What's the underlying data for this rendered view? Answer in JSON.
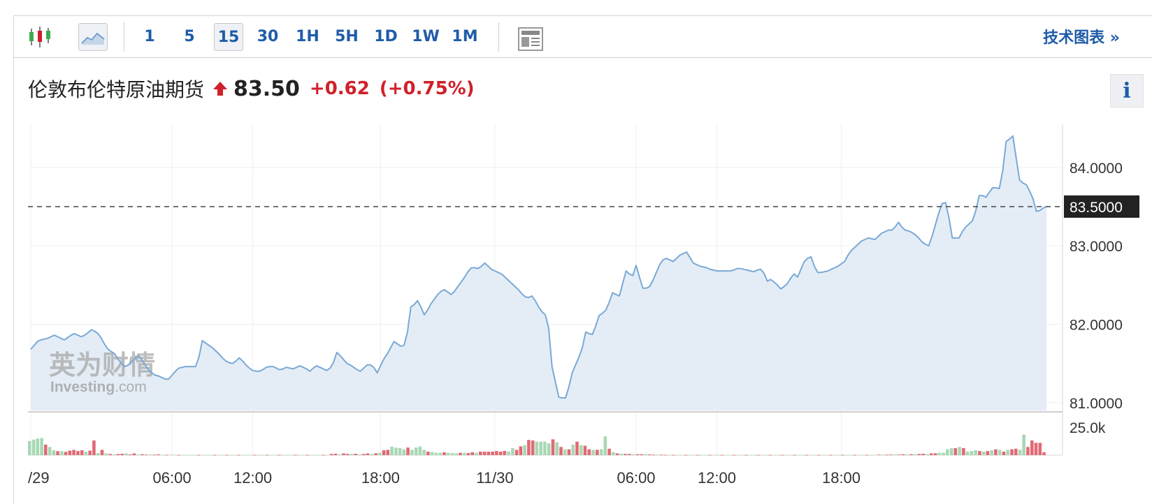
{
  "toolbar": {
    "timeframes": [
      "1",
      "5",
      "15",
      "30",
      "1H",
      "5H",
      "1D",
      "1W",
      "1M"
    ],
    "active_timeframe": "15",
    "technical_chart_label": "技术图表 »"
  },
  "header": {
    "instrument": "伦敦布伦特原油期货",
    "price": "83.50",
    "change": "+0.62",
    "change_pct": "(+0.75%)"
  },
  "info_label": "i",
  "watermark": {
    "line1": "英为财情",
    "line2": "Investing",
    "line2_suffix": ".com"
  },
  "colors": {
    "line": "#7aa9d6",
    "area": "#e4edf6",
    "up_volume": "#a8d8b4",
    "down_volume": "#e06a74",
    "change": "#d0202a",
    "link": "#1f5ca8"
  },
  "chart_data": {
    "type": "area",
    "title": "伦敦布伦特原油期货",
    "x_tick_labels": [
      "/29",
      "06:00",
      "12:00",
      "18:00",
      "11/30",
      "06:00",
      "12:00",
      "18:00"
    ],
    "x_tick_index": [
      0,
      42,
      66,
      104,
      138,
      180,
      204,
      241
    ],
    "y_tick_labels": [
      "84.0000",
      "83.0000",
      "82.0000",
      "81.0000"
    ],
    "y_ticks": [
      84,
      83,
      82,
      81
    ],
    "ylim": [
      80.9,
      84.55
    ],
    "current_price_label": "83.5000",
    "current_price": 83.5,
    "values": [
      81.68,
      81.73,
      81.78,
      81.8,
      81.81,
      81.82,
      81.84,
      81.86,
      81.84,
      81.82,
      81.8,
      81.83,
      81.86,
      81.88,
      81.86,
      81.84,
      81.86,
      81.89,
      81.93,
      81.91,
      81.88,
      81.82,
      81.74,
      81.68,
      81.65,
      81.62,
      81.55,
      81.5,
      81.46,
      81.48,
      81.52,
      81.56,
      81.6,
      81.55,
      81.48,
      81.42,
      81.38,
      81.35,
      81.34,
      81.32,
      81.3,
      81.3,
      81.35,
      81.4,
      81.44,
      81.45,
      81.46,
      81.46,
      81.46,
      81.46,
      81.58,
      81.79,
      81.76,
      81.73,
      81.7,
      81.66,
      81.62,
      81.57,
      81.53,
      81.51,
      81.5,
      81.53,
      81.57,
      81.53,
      81.48,
      81.44,
      81.41,
      81.4,
      81.4,
      81.42,
      81.45,
      81.46,
      81.46,
      81.44,
      81.42,
      81.43,
      81.45,
      81.44,
      81.43,
      81.45,
      81.47,
      81.45,
      81.43,
      81.4,
      81.44,
      81.47,
      81.45,
      81.43,
      81.41,
      81.44,
      81.51,
      81.64,
      81.6,
      81.55,
      81.5,
      81.48,
      81.45,
      81.42,
      81.4,
      81.44,
      81.48,
      81.48,
      81.45,
      81.38,
      81.47,
      81.56,
      81.62,
      81.7,
      81.78,
      81.75,
      81.72,
      81.73,
      81.9,
      82.22,
      82.25,
      82.3,
      82.22,
      82.12,
      82.18,
      82.26,
      82.32,
      82.38,
      82.42,
      82.44,
      82.41,
      82.38,
      82.42,
      82.48,
      82.54,
      82.6,
      82.67,
      82.72,
      82.72,
      82.71,
      82.74,
      82.78,
      82.74,
      82.7,
      82.68,
      82.66,
      82.64,
      82.6,
      82.56,
      82.52,
      82.48,
      82.44,
      82.39,
      82.35,
      82.34,
      82.36,
      82.3,
      82.22,
      82.16,
      82.12,
      81.95,
      81.46,
      81.26,
      81.07,
      81.06,
      81.06,
      81.2,
      81.38,
      81.48,
      81.58,
      81.7,
      81.9,
      81.88,
      81.87,
      81.98,
      82.11,
      82.14,
      82.18,
      82.28,
      82.4,
      82.38,
      82.36,
      82.52,
      82.68,
      82.64,
      82.62,
      82.75,
      82.6,
      82.46,
      82.46,
      82.48,
      82.56,
      82.66,
      82.76,
      82.82,
      82.84,
      82.82,
      82.8,
      82.84,
      82.88,
      82.9,
      82.92,
      82.85,
      82.78,
      82.76,
      82.74,
      82.73,
      82.72,
      82.7,
      82.69,
      82.68,
      82.68,
      82.68,
      82.68,
      82.68,
      82.69,
      82.71,
      82.71,
      82.7,
      82.69,
      82.68,
      82.67,
      82.69,
      82.7,
      82.65,
      82.55,
      82.57,
      82.54,
      82.5,
      82.45,
      82.48,
      82.52,
      82.59,
      82.64,
      82.6,
      82.7,
      82.8,
      82.84,
      82.86,
      82.74,
      82.66,
      82.66,
      82.67,
      82.68,
      82.7,
      82.72,
      82.74,
      82.77,
      82.8,
      82.88,
      82.94,
      82.98,
      83.02,
      83.06,
      83.08,
      83.1,
      83.09,
      83.08,
      83.12,
      83.16,
      83.18,
      83.2,
      83.2,
      83.24,
      83.3,
      83.24,
      83.2,
      83.19,
      83.17,
      83.14,
      83.1,
      83.05,
      83.02,
      83.0,
      83.12,
      83.27,
      83.42,
      83.54,
      83.55,
      83.36,
      83.1,
      83.1,
      83.1,
      83.18,
      83.24,
      83.28,
      83.32,
      83.45,
      83.64,
      83.64,
      83.62,
      83.68,
      83.74,
      83.74,
      83.73,
      83.96,
      84.33,
      84.36,
      84.4,
      84.12,
      83.84,
      83.8,
      83.78,
      83.7,
      83.6,
      83.44,
      83.45,
      83.48,
      83.5
    ],
    "volume_axis_label": "25.0k",
    "volume_ylim": [
      0,
      28000
    ],
    "volume": [
      {
        "v": 12000,
        "up": true
      },
      {
        "v": 13200,
        "up": true
      },
      {
        "v": 14200,
        "up": true
      },
      {
        "v": 14600,
        "up": true
      },
      {
        "v": 9000,
        "up": false
      },
      {
        "v": 7000,
        "up": true
      },
      {
        "v": 4200,
        "up": true
      },
      {
        "v": 3400,
        "up": false
      },
      {
        "v": 3400,
        "up": true
      },
      {
        "v": 2800,
        "up": false
      },
      {
        "v": 3800,
        "up": false
      },
      {
        "v": 4500,
        "up": false
      },
      {
        "v": 3500,
        "up": false
      },
      {
        "v": 4200,
        "up": false
      },
      {
        "v": 3000,
        "up": true
      },
      {
        "v": 3800,
        "up": false
      },
      {
        "v": 12500,
        "up": false
      },
      {
        "v": 1800,
        "up": true
      },
      {
        "v": 4500,
        "up": false
      },
      {
        "v": 1500,
        "up": true
      },
      {
        "v": 1000,
        "up": false
      },
      {
        "v": 600,
        "up": true
      },
      {
        "v": 1000,
        "up": false
      },
      {
        "v": 1200,
        "up": false
      },
      {
        "v": 1400,
        "up": true
      },
      {
        "v": 600,
        "up": false
      },
      {
        "v": 1400,
        "up": false
      },
      {
        "v": 600,
        "up": true
      },
      {
        "v": 800,
        "up": false
      },
      {
        "v": 400,
        "up": false
      },
      {
        "v": 600,
        "up": true
      },
      {
        "v": 400,
        "up": false
      },
      {
        "v": 600,
        "up": false
      },
      {
        "v": 300,
        "up": true
      },
      {
        "v": 300,
        "up": false
      },
      {
        "v": 400,
        "up": true
      },
      {
        "v": 300,
        "up": true
      },
      {
        "v": 200,
        "up": false
      },
      {
        "v": 300,
        "up": true
      },
      {
        "v": 200,
        "up": true
      },
      {
        "v": 200,
        "up": true
      },
      {
        "v": 200,
        "up": true
      },
      {
        "v": 200,
        "up": false
      },
      {
        "v": 200,
        "up": true
      },
      {
        "v": 200,
        "up": true
      },
      {
        "v": 200,
        "up": true
      },
      {
        "v": 200,
        "up": false
      },
      {
        "v": 200,
        "up": true
      },
      {
        "v": 200,
        "up": true
      },
      {
        "v": 200,
        "up": false
      },
      {
        "v": 200,
        "up": true
      },
      {
        "v": 200,
        "up": true
      },
      {
        "v": 200,
        "up": false
      },
      {
        "v": 200,
        "up": true
      },
      {
        "v": 200,
        "up": true
      },
      {
        "v": 200,
        "up": true
      },
      {
        "v": 200,
        "up": false
      },
      {
        "v": 200,
        "up": true
      },
      {
        "v": 200,
        "up": true
      },
      {
        "v": 200,
        "up": false
      },
      {
        "v": 200,
        "up": true
      },
      {
        "v": 200,
        "up": true
      },
      {
        "v": 200,
        "up": false
      },
      {
        "v": 200,
        "up": true
      },
      {
        "v": 200,
        "up": true
      },
      {
        "v": 200,
        "up": true
      },
      {
        "v": 200,
        "up": false
      },
      {
        "v": 200,
        "up": true
      },
      {
        "v": 200,
        "up": true
      },
      {
        "v": 200,
        "up": false
      },
      {
        "v": 200,
        "up": true
      },
      {
        "v": 200,
        "up": true
      },
      {
        "v": 200,
        "up": true
      },
      {
        "v": 200,
        "up": false
      },
      {
        "v": 200,
        "up": true
      },
      {
        "v": 1000,
        "up": false
      },
      {
        "v": 1200,
        "up": false
      },
      {
        "v": 600,
        "up": true
      },
      {
        "v": 1500,
        "up": false
      },
      {
        "v": 1000,
        "up": false
      },
      {
        "v": 1000,
        "up": true
      },
      {
        "v": 1200,
        "up": false
      },
      {
        "v": 600,
        "up": true
      },
      {
        "v": 1000,
        "up": false
      },
      {
        "v": 1500,
        "up": false
      },
      {
        "v": 1000,
        "up": true
      },
      {
        "v": 1600,
        "up": false
      },
      {
        "v": 2000,
        "up": true
      },
      {
        "v": 4200,
        "up": false
      },
      {
        "v": 4500,
        "up": false
      },
      {
        "v": 7200,
        "up": true
      },
      {
        "v": 6400,
        "up": true
      },
      {
        "v": 6000,
        "up": true
      },
      {
        "v": 5000,
        "up": true
      },
      {
        "v": 6500,
        "up": false
      },
      {
        "v": 4500,
        "up": true
      },
      {
        "v": 6500,
        "up": true
      },
      {
        "v": 7400,
        "up": true
      },
      {
        "v": 4500,
        "up": true
      },
      {
        "v": 3000,
        "up": false
      },
      {
        "v": 2600,
        "up": true
      },
      {
        "v": 2000,
        "up": true
      },
      {
        "v": 2000,
        "up": true
      },
      {
        "v": 2500,
        "up": false
      },
      {
        "v": 2000,
        "up": true
      },
      {
        "v": 1800,
        "up": true
      },
      {
        "v": 1500,
        "up": true
      },
      {
        "v": 2000,
        "up": false
      },
      {
        "v": 2000,
        "up": true
      },
      {
        "v": 1800,
        "up": false
      },
      {
        "v": 2500,
        "up": false
      },
      {
        "v": 2000,
        "up": true
      },
      {
        "v": 3000,
        "up": false
      },
      {
        "v": 3000,
        "up": false
      },
      {
        "v": 3000,
        "up": false
      },
      {
        "v": 3000,
        "up": false
      },
      {
        "v": 3500,
        "up": false
      },
      {
        "v": 3000,
        "up": false
      },
      {
        "v": 3600,
        "up": false
      },
      {
        "v": 3200,
        "up": true
      },
      {
        "v": 6000,
        "up": true
      },
      {
        "v": 4500,
        "up": false
      },
      {
        "v": 7500,
        "up": false
      },
      {
        "v": 8500,
        "up": true
      },
      {
        "v": 13000,
        "up": false
      },
      {
        "v": 12500,
        "up": false
      },
      {
        "v": 11500,
        "up": true
      },
      {
        "v": 11500,
        "up": true
      },
      {
        "v": 11500,
        "up": true
      },
      {
        "v": 10000,
        "up": true
      },
      {
        "v": 13500,
        "up": false
      },
      {
        "v": 11000,
        "up": true
      },
      {
        "v": 7000,
        "up": false
      },
      {
        "v": 5000,
        "up": true
      },
      {
        "v": 5000,
        "up": false
      },
      {
        "v": 9000,
        "up": true
      },
      {
        "v": 11500,
        "up": false
      },
      {
        "v": 8500,
        "up": true
      },
      {
        "v": 8000,
        "up": false
      },
      {
        "v": 5000,
        "up": false
      },
      {
        "v": 4500,
        "up": true
      },
      {
        "v": 4500,
        "up": false
      },
      {
        "v": 5000,
        "up": true
      },
      {
        "v": 16000,
        "up": true
      },
      {
        "v": 5500,
        "up": false
      },
      {
        "v": 2500,
        "up": true
      },
      {
        "v": 1500,
        "up": false
      },
      {
        "v": 1200,
        "up": true
      },
      {
        "v": 1000,
        "up": false
      },
      {
        "v": 1000,
        "up": false
      },
      {
        "v": 800,
        "up": true
      },
      {
        "v": 800,
        "up": false
      },
      {
        "v": 800,
        "up": false
      },
      {
        "v": 800,
        "up": true
      },
      {
        "v": 600,
        "up": false
      },
      {
        "v": 400,
        "up": false
      },
      {
        "v": 400,
        "up": true
      },
      {
        "v": 400,
        "up": false
      },
      {
        "v": 300,
        "up": false
      },
      {
        "v": 300,
        "up": true
      },
      {
        "v": 200,
        "up": false
      },
      {
        "v": 200,
        "up": true
      },
      {
        "v": 200,
        "up": true
      },
      {
        "v": 200,
        "up": false
      },
      {
        "v": 200,
        "up": true
      },
      {
        "v": 200,
        "up": true
      },
      {
        "v": 200,
        "up": false
      },
      {
        "v": 200,
        "up": true
      },
      {
        "v": 200,
        "up": true
      },
      {
        "v": 200,
        "up": false
      },
      {
        "v": 200,
        "up": true
      },
      {
        "v": 200,
        "up": true
      },
      {
        "v": 200,
        "up": false
      },
      {
        "v": 200,
        "up": true
      },
      {
        "v": 200,
        "up": true
      },
      {
        "v": 200,
        "up": false
      },
      {
        "v": 200,
        "up": true
      },
      {
        "v": 200,
        "up": true
      },
      {
        "v": 200,
        "up": false
      },
      {
        "v": 200,
        "up": true
      },
      {
        "v": 200,
        "up": true
      },
      {
        "v": 200,
        "up": false
      },
      {
        "v": 200,
        "up": true
      },
      {
        "v": 200,
        "up": true
      },
      {
        "v": 200,
        "up": false
      },
      {
        "v": 200,
        "up": true
      },
      {
        "v": 200,
        "up": true
      },
      {
        "v": 200,
        "up": false
      },
      {
        "v": 200,
        "up": true
      },
      {
        "v": 200,
        "up": true
      },
      {
        "v": 200,
        "up": false
      },
      {
        "v": 200,
        "up": true
      },
      {
        "v": 200,
        "up": true
      },
      {
        "v": 200,
        "up": false
      },
      {
        "v": 200,
        "up": true
      },
      {
        "v": 200,
        "up": true
      },
      {
        "v": 200,
        "up": false
      },
      {
        "v": 200,
        "up": true
      },
      {
        "v": 200,
        "up": true
      },
      {
        "v": 200,
        "up": false
      },
      {
        "v": 200,
        "up": true
      },
      {
        "v": 200,
        "up": true
      },
      {
        "v": 200,
        "up": false
      },
      {
        "v": 200,
        "up": true
      },
      {
        "v": 200,
        "up": true
      },
      {
        "v": 200,
        "up": false
      },
      {
        "v": 200,
        "up": true
      },
      {
        "v": 200,
        "up": true
      },
      {
        "v": 200,
        "up": false
      },
      {
        "v": 200,
        "up": true
      },
      {
        "v": 200,
        "up": true
      },
      {
        "v": 400,
        "up": false
      },
      {
        "v": 400,
        "up": true
      },
      {
        "v": 400,
        "up": false
      },
      {
        "v": 500,
        "up": false
      },
      {
        "v": 600,
        "up": true
      },
      {
        "v": 500,
        "up": false
      },
      {
        "v": 800,
        "up": false
      },
      {
        "v": 600,
        "up": true
      },
      {
        "v": 800,
        "up": false
      },
      {
        "v": 800,
        "up": true
      },
      {
        "v": 1000,
        "up": false
      },
      {
        "v": 1200,
        "up": false
      },
      {
        "v": 1000,
        "up": true
      },
      {
        "v": 1500,
        "up": false
      },
      {
        "v": 1600,
        "up": false
      },
      {
        "v": 2000,
        "up": true
      },
      {
        "v": 2000,
        "up": true
      },
      {
        "v": 5000,
        "up": true
      },
      {
        "v": 6000,
        "up": true
      },
      {
        "v": 6000,
        "up": false
      },
      {
        "v": 7000,
        "up": true
      },
      {
        "v": 6000,
        "up": false
      },
      {
        "v": 3000,
        "up": true
      },
      {
        "v": 3500,
        "up": true
      },
      {
        "v": 4200,
        "up": true
      },
      {
        "v": 3500,
        "up": false
      },
      {
        "v": 3000,
        "up": true
      },
      {
        "v": 3500,
        "up": false
      },
      {
        "v": 4200,
        "up": true
      },
      {
        "v": 5000,
        "up": false
      },
      {
        "v": 4500,
        "up": true
      },
      {
        "v": 3000,
        "up": false
      },
      {
        "v": 4500,
        "up": true
      },
      {
        "v": 5000,
        "up": false
      },
      {
        "v": 5500,
        "up": false
      },
      {
        "v": 4500,
        "up": true
      },
      {
        "v": 17500,
        "up": true
      },
      {
        "v": 7000,
        "up": false
      },
      {
        "v": 12500,
        "up": false
      },
      {
        "v": 10500,
        "up": false
      },
      {
        "v": 10500,
        "up": false
      },
      {
        "v": 2500,
        "up": false
      }
    ]
  }
}
